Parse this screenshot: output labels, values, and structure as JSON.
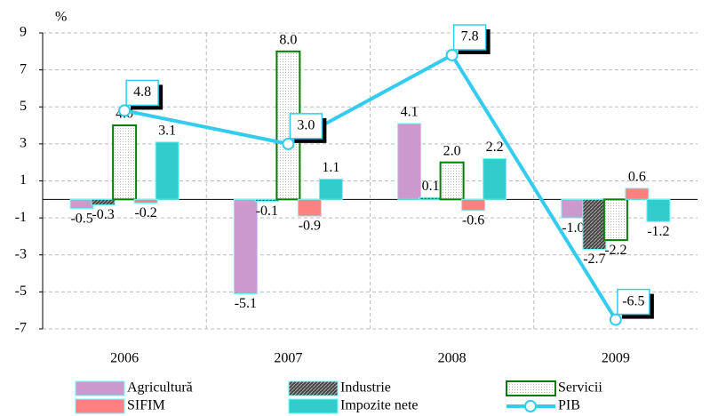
{
  "chart_data": {
    "type": "bar_line",
    "y_label": "%",
    "categories": [
      "2006",
      "2007",
      "2008",
      "2009"
    ],
    "series": [
      {
        "name": "Agricultură",
        "color": "#cc99cc",
        "values": [
          -0.5,
          -5.1,
          4.1,
          -1.0
        ]
      },
      {
        "name": "Industrie",
        "color": "#666666",
        "hatch": true,
        "values": [
          -0.3,
          -0.1,
          0.1,
          -2.7
        ]
      },
      {
        "name": "Servicii",
        "color": "#008000",
        "fill": "#ffffff",
        "values": [
          4.0,
          8.0,
          2.0,
          -2.2
        ]
      },
      {
        "name": "SIFIM",
        "color": "#ff8080",
        "values": [
          -0.2,
          -0.9,
          -0.6,
          0.6
        ]
      },
      {
        "name": "Impozite nete",
        "color": "#33cccc",
        "values": [
          3.1,
          1.1,
          2.2,
          -1.2
        ]
      },
      {
        "name": "PIB",
        "color": "#33ccee",
        "type": "line",
        "values": [
          4.8,
          3.0,
          7.8,
          -6.5
        ]
      }
    ],
    "ylim": [
      -7,
      9
    ],
    "yticks": [
      9,
      7,
      5,
      3,
      1,
      -1,
      -3,
      -5,
      -7
    ],
    "grid": true
  }
}
